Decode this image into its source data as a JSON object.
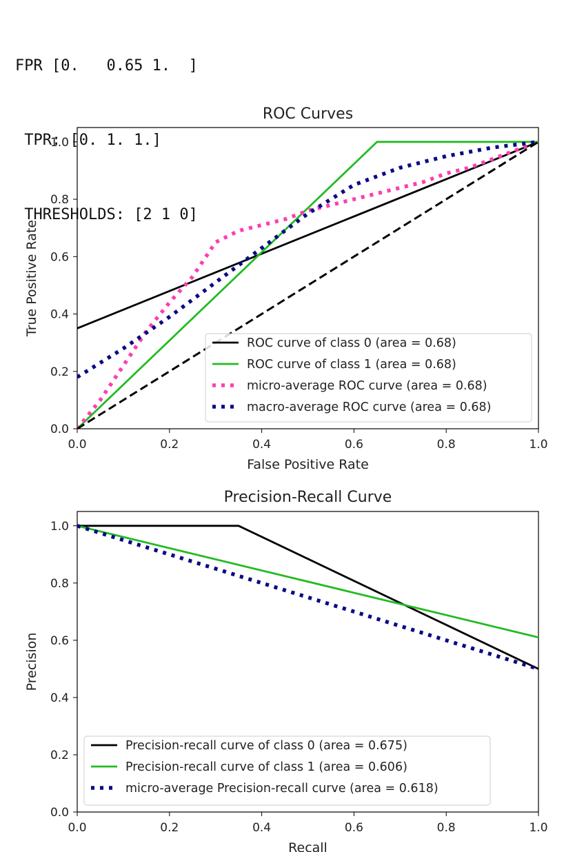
{
  "console": {
    "lines": [
      "FPR [0.   0.65 1.  ]",
      " TPR: [0. 1. 1.]",
      " THRESHOLDS: [2 1 0]"
    ]
  },
  "colors": {
    "black": "#000000",
    "green": "#22bb22",
    "pink": "#ff3db1",
    "navy": "#0a0a85",
    "dashed_diag": "#000000"
  },
  "chart_data": [
    {
      "type": "line",
      "title": "ROC Curves",
      "xlabel": "False Positive Rate",
      "ylabel": "True Positive Rate",
      "xlim": [
        0,
        1
      ],
      "ylim": [
        0,
        1.05
      ],
      "xticks": [
        "0.0",
        "0.2",
        "0.4",
        "0.6",
        "0.8",
        "1.0"
      ],
      "yticks": [
        "0.0",
        "0.2",
        "0.4",
        "0.6",
        "0.8",
        "1.0"
      ],
      "legend_position": "lower-right",
      "series": [
        {
          "name": "ROC curve of class 0 (area = 0.68)",
          "style": "solid",
          "color": "black",
          "x": [
            0,
            1
          ],
          "y": [
            0.35,
            1
          ]
        },
        {
          "name": "ROC curve of class 1 (area = 0.68)",
          "style": "solid",
          "color": "green",
          "x": [
            0,
            0.65,
            1
          ],
          "y": [
            0,
            1,
            1
          ]
        },
        {
          "name": "micro-average ROC curve (area = 0.68)",
          "style": "dotted",
          "color": "pink",
          "x": [
            0,
            0.05,
            0.1,
            0.15,
            0.2,
            0.25,
            0.3,
            0.35,
            0.4,
            0.45,
            0.5,
            0.55,
            0.6,
            0.65,
            0.7,
            0.75,
            0.8,
            0.85,
            0.9,
            0.95,
            1.0
          ],
          "y": [
            0,
            0.1,
            0.22,
            0.34,
            0.44,
            0.53,
            0.65,
            0.69,
            0.71,
            0.73,
            0.76,
            0.78,
            0.8,
            0.82,
            0.84,
            0.86,
            0.89,
            0.91,
            0.94,
            0.97,
            1.0
          ]
        },
        {
          "name": "macro-average ROC curve (area = 0.68)",
          "style": "dotted",
          "color": "navy",
          "x": [
            0,
            0.1,
            0.2,
            0.3,
            0.4,
            0.5,
            0.6,
            0.65,
            0.7,
            0.8,
            0.9,
            1.0
          ],
          "y": [
            0.18,
            0.28,
            0.39,
            0.51,
            0.63,
            0.75,
            0.85,
            0.88,
            0.91,
            0.95,
            0.98,
            1.0
          ]
        },
        {
          "name": "",
          "style": "dashed",
          "color": "dashed_diag",
          "legend": false,
          "x": [
            0,
            1
          ],
          "y": [
            0,
            1
          ]
        }
      ]
    },
    {
      "type": "line",
      "title": "Precision-Recall Curve",
      "xlabel": "Recall",
      "ylabel": "Precision",
      "xlim": [
        0,
        1
      ],
      "ylim": [
        0,
        1.05
      ],
      "xticks": [
        "0.0",
        "0.2",
        "0.4",
        "0.6",
        "0.8",
        "1.0"
      ],
      "yticks": [
        "0.0",
        "0.2",
        "0.4",
        "0.6",
        "0.8",
        "1.0"
      ],
      "legend_position": "lower-left",
      "series": [
        {
          "name": "Precision-recall curve of class 0 (area = 0.675)",
          "style": "solid",
          "color": "black",
          "x": [
            0,
            0.35,
            1
          ],
          "y": [
            1,
            1,
            0.5
          ]
        },
        {
          "name": "Precision-recall curve of class 1 (area = 0.606)",
          "style": "solid",
          "color": "green",
          "x": [
            0,
            1
          ],
          "y": [
            1,
            0.61
          ]
        },
        {
          "name": "micro-average Precision-recall curve (area = 0.618)",
          "style": "dotted",
          "color": "navy",
          "x": [
            0,
            0.2,
            0.4,
            0.6,
            0.8,
            1.0
          ],
          "y": [
            1,
            0.9,
            0.8,
            0.7,
            0.6,
            0.5
          ]
        }
      ]
    }
  ]
}
